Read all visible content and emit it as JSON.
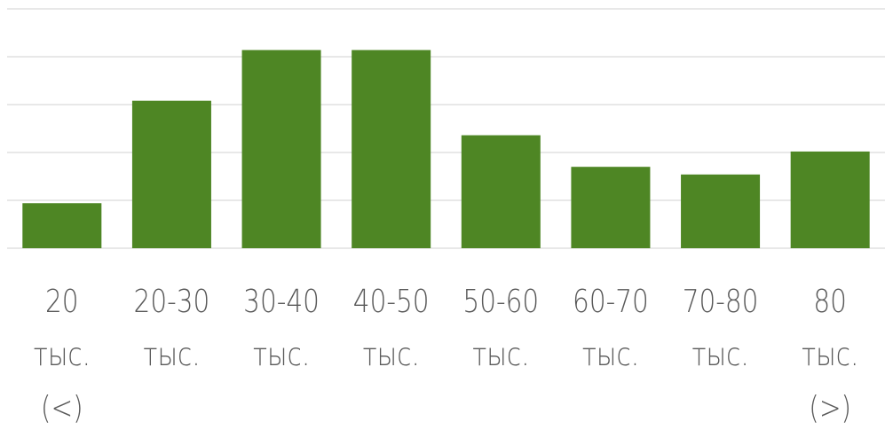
{
  "chart_data": {
    "type": "bar",
    "categories": [
      [
        "20",
        "тыс.",
        "(<)"
      ],
      [
        "20-30",
        "тыс."
      ],
      [
        "30-40",
        "тыс."
      ],
      [
        "40-50",
        "тыс."
      ],
      [
        "50-60",
        "тыс."
      ],
      [
        "60-70",
        "тыс."
      ],
      [
        "70-80",
        "тыс."
      ],
      [
        "80",
        "тыс.",
        "(>)"
      ]
    ],
    "values": [
      4.7,
      15.4,
      20.7,
      20.7,
      11.8,
      8.5,
      7.7,
      10.1
    ],
    "ylim": [
      0,
      25
    ],
    "grid": true,
    "gridlines": [
      0,
      5,
      10,
      15,
      20,
      25
    ],
    "title": "",
    "xlabel": "",
    "ylabel": "",
    "legend": "none",
    "colors": {
      "bar": "#4e8624",
      "grid": "#d9d9d9",
      "text": "#595959"
    }
  }
}
